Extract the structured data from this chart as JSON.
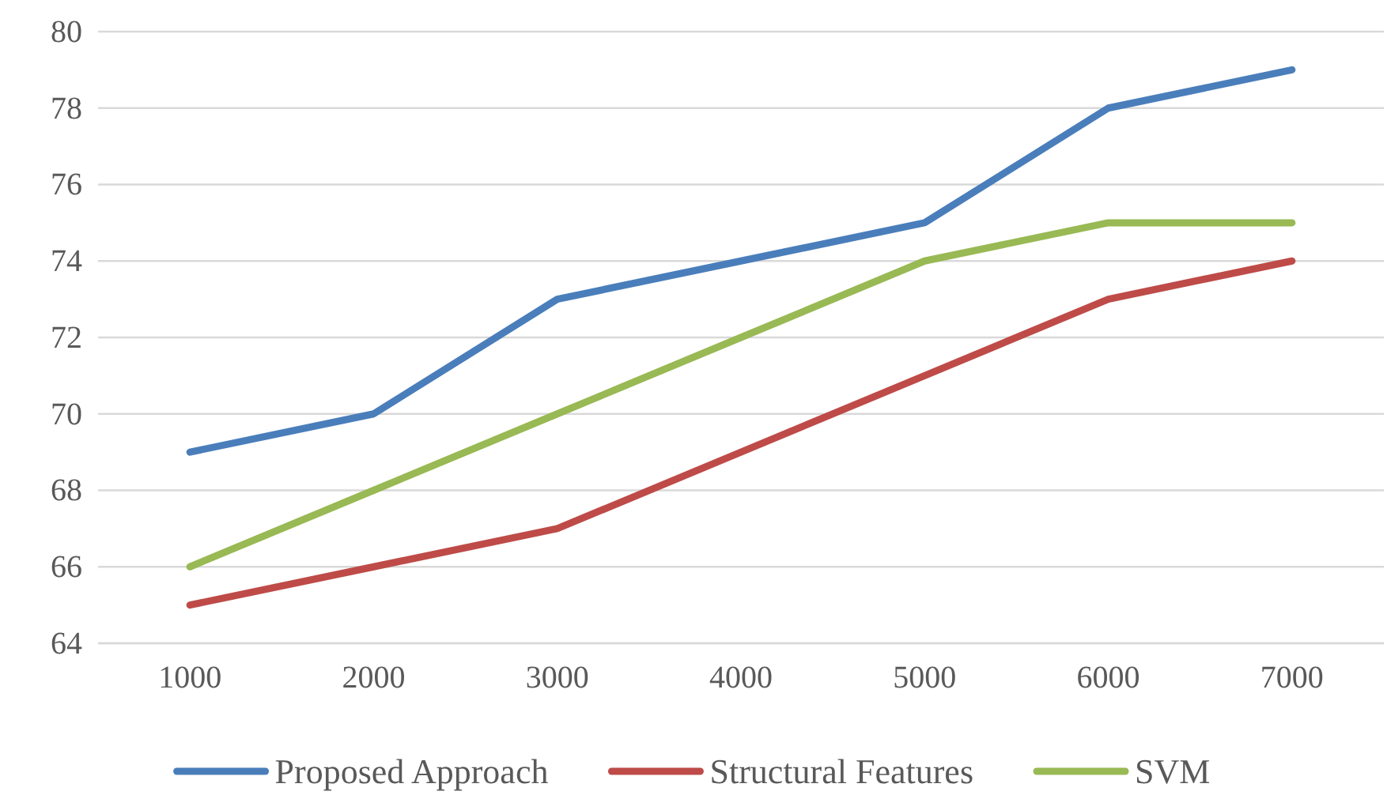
{
  "chart_data": {
    "type": "line",
    "categories": [
      "1000",
      "2000",
      "3000",
      "4000",
      "5000",
      "6000",
      "7000"
    ],
    "series": [
      {
        "name": "Proposed Approach",
        "color": "#4a7ebb",
        "values": [
          69,
          70,
          73,
          74,
          75,
          78,
          79
        ]
      },
      {
        "name": "Structural Features",
        "color": "#be4b48",
        "values": [
          65,
          66,
          67,
          69,
          71,
          73,
          74
        ]
      },
      {
        "name": "SVM",
        "color": "#98b954",
        "values": [
          66,
          68,
          70,
          72,
          74,
          75,
          75
        ]
      }
    ],
    "ylim": [
      64,
      80
    ],
    "yticks": [
      64,
      66,
      68,
      70,
      72,
      74,
      76,
      78,
      80
    ],
    "grid": "y",
    "legend": "bottom",
    "marker": "none",
    "line_style": "solid"
  }
}
